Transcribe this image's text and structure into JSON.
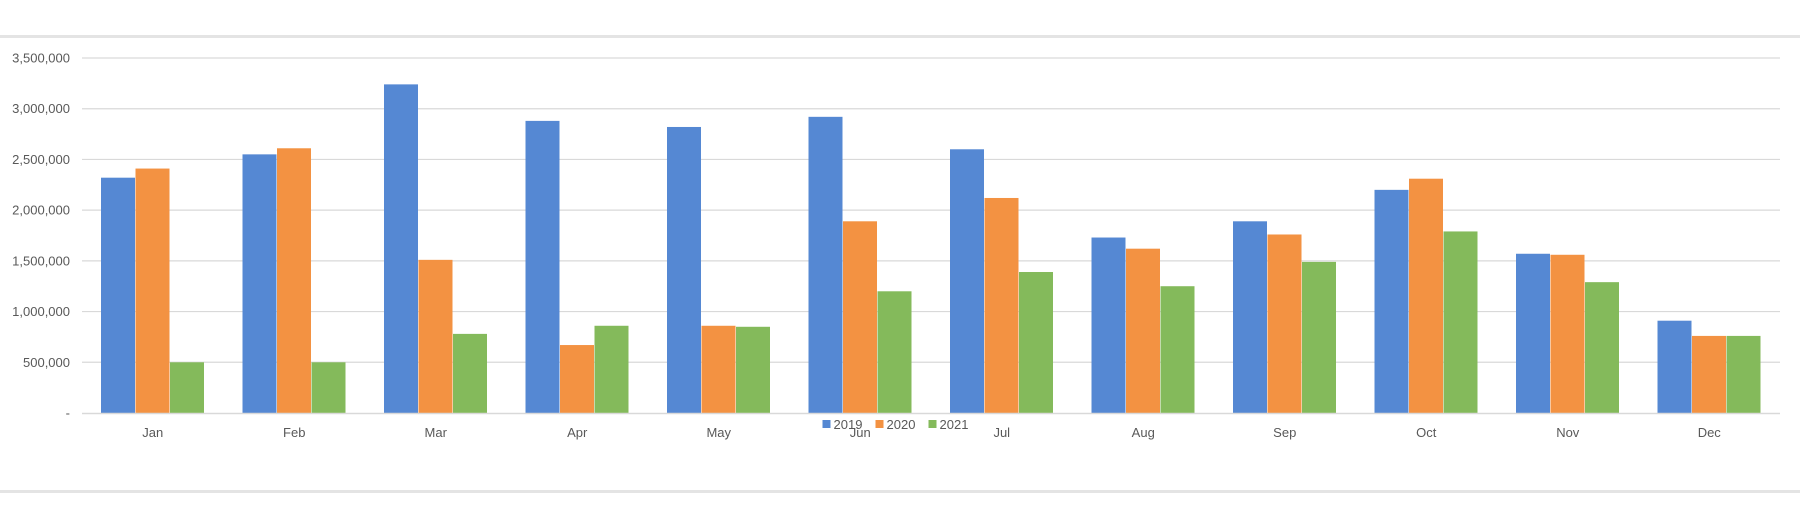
{
  "chart_data": {
    "type": "bar",
    "title": "",
    "xlabel": "",
    "ylabel": "",
    "categories": [
      "Jan",
      "Feb",
      "Mar",
      "Apr",
      "May",
      "Jun",
      "Jul",
      "Aug",
      "Sep",
      "Oct",
      "Nov",
      "Dec"
    ],
    "series": [
      {
        "name": "2019",
        "color": "#5588d3",
        "values": [
          2320000,
          2550000,
          3240000,
          2880000,
          2820000,
          2920000,
          2600000,
          1730000,
          1890000,
          2200000,
          1570000,
          910000
        ]
      },
      {
        "name": "2020",
        "color": "#f39242",
        "values": [
          2410000,
          2610000,
          1510000,
          670000,
          860000,
          1890000,
          2120000,
          1620000,
          1760000,
          2310000,
          1560000,
          760000
        ]
      },
      {
        "name": "2021",
        "color": "#84ba5b",
        "values": [
          500000,
          500000,
          780000,
          860000,
          850000,
          1200000,
          1390000,
          1250000,
          1490000,
          1790000,
          1290000,
          760000
        ]
      }
    ],
    "ylim": [
      0,
      3500000
    ],
    "y_ticks": [
      0,
      500000,
      1000000,
      1500000,
      2000000,
      2500000,
      3000000,
      3500000
    ],
    "y_tick_labels": [
      "-",
      "500,000",
      "1,000,000",
      "1,500,000",
      "2,000,000",
      "2,500,000",
      "3,000,000",
      "3,500,000"
    ],
    "grid": true,
    "legend_position": "bottom"
  }
}
